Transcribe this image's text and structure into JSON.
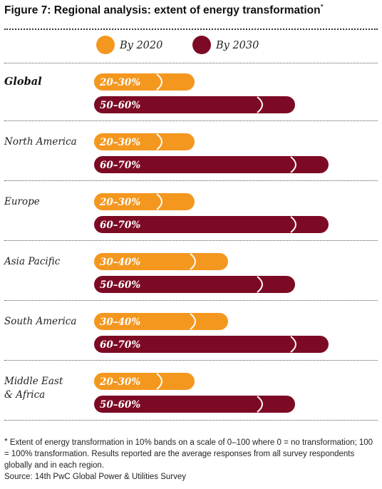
{
  "title": "Figure 7: Regional analysis: extent of energy transformation",
  "title_marker": "*",
  "footnote_marker": "*",
  "footnote": "Extent of energy transformation in 10% bands on a scale of 0–100 where 0 = no transformation; 100 = 100% transformation. Results reported are the average responses from all survey respondents globally and in each region.",
  "source": "Source: 14th PwC Global Power & Utilities Survey",
  "colors": {
    "by_2020": "#f4971e",
    "by_2030": "#7d0a25"
  },
  "chart_data": {
    "type": "bar",
    "orientation": "horizontal",
    "scale": [
      0,
      100
    ],
    "legend": [
      "By 2020",
      "By 2030"
    ],
    "legend_position": "top",
    "categories": [
      "Global",
      "North America",
      "Europe",
      "Asia Pacific",
      "South America",
      "Middle East & Africa"
    ],
    "series": [
      {
        "name": "By 2020",
        "bands": [
          [
            20,
            30
          ],
          [
            20,
            30
          ],
          [
            20,
            30
          ],
          [
            30,
            40
          ],
          [
            30,
            40
          ],
          [
            20,
            30
          ]
        ],
        "labels": [
          "20–30%",
          "20–30%",
          "20–30%",
          "30–40%",
          "30–40%",
          "20–30%"
        ]
      },
      {
        "name": "By 2030",
        "bands": [
          [
            50,
            60
          ],
          [
            60,
            70
          ],
          [
            60,
            70
          ],
          [
            50,
            60
          ],
          [
            60,
            70
          ],
          [
            50,
            60
          ]
        ],
        "labels": [
          "50–60%",
          "60–70%",
          "60–70%",
          "50–60%",
          "60–70%",
          "50–60%"
        ]
      }
    ]
  }
}
